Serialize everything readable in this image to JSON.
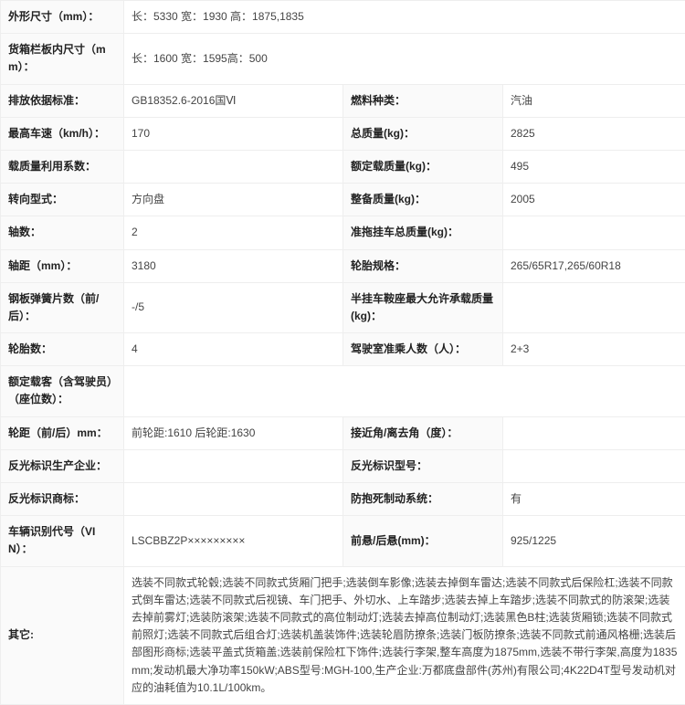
{
  "rows": [
    {
      "type": "span2",
      "label": "外形尺寸（mm）：",
      "value": "长：5330 宽：1930 高：1875,1835"
    },
    {
      "type": "span2",
      "label": "货箱栏板内尺寸（mm）：",
      "value": "长：1600 宽：1595高：500"
    },
    {
      "type": "quad",
      "l1": "排放依据标准：",
      "v1": "GB18352.6-2016国Ⅵ",
      "l2": "燃料种类：",
      "v2": "汽油"
    },
    {
      "type": "quad",
      "l1": "最高车速（km/h）：",
      "v1": "170",
      "l2": "总质量(kg)：",
      "v2": "2825"
    },
    {
      "type": "quad",
      "l1": "载质量利用系数：",
      "v1": "",
      "l2": "额定载质量(kg)：",
      "v2": "495"
    },
    {
      "type": "quad",
      "l1": "转向型式：",
      "v1": "方向盘",
      "l2": "整备质量(kg)：",
      "v2": "2005"
    },
    {
      "type": "quad",
      "l1": "轴数：",
      "v1": "2",
      "l2": "准拖挂车总质量(kg)：",
      "v2": ""
    },
    {
      "type": "quad",
      "l1": "轴距（mm）：",
      "v1": "3180",
      "l2": "轮胎规格：",
      "v2": "265/65R17,265/60R18"
    },
    {
      "type": "quad",
      "l1": "钢板弹簧片数（前/后）：",
      "v1": "-/5",
      "l2": "半挂车鞍座最大允许承载质量(kg)：",
      "v2": ""
    },
    {
      "type": "quad",
      "l1": "轮胎数：",
      "v1": "4",
      "l2": "驾驶室准乘人数（人）：",
      "v2": "2+3"
    },
    {
      "type": "span2",
      "label": "额定载客（含驾驶员）（座位数）：",
      "value": ""
    },
    {
      "type": "quad",
      "l1": "轮距（前/后）mm：",
      "v1": "前轮距:1610 后轮距:1630",
      "l2": "接近角/离去角（度）：",
      "v2": ""
    },
    {
      "type": "quad",
      "l1": "反光标识生产企业：",
      "v1": "",
      "l2": "反光标识型号：",
      "v2": ""
    },
    {
      "type": "quad",
      "l1": "反光标识商标：",
      "v1": "",
      "l2": "防抱死制动系统：",
      "v2": "有"
    },
    {
      "type": "quad",
      "l1": "车辆识别代号（VIN）：",
      "v1": "LSCBBZ2P×××××××××",
      "l2": "前悬/后悬(mm)：",
      "v2": "925/1225"
    },
    {
      "type": "span2",
      "label": "其它:",
      "value": "选装不同款式轮毂;选装不同款式货厢门把手;选装倒车影像;选装去掉倒车雷达;选装不同款式后保险杠;选装不同款式倒车雷达;选装不同款式后视镜、车门把手、外切水、上车踏步;选装去掉上车踏步;选装不同款式的防滚架;选装去掉前雾灯;选装防滚架;选装不同款式的高位制动灯;选装去掉高位制动灯;选装黑色B柱;选装货厢锁;选装不同款式前照灯;选装不同款式后组合灯;选装机盖装饰件;选装轮眉防撩条;选装门板防撩条;选装不同款式前通风格栅;选装后部图形商标;选装平盖式货箱盖;选装前保险杠下饰件;选装行李架,整车高度为1875mm,选装不带行李架,高度为1835mm;发动机最大净功率150kW;ABS型号:MGH-100,生产企业:万都底盘部件(苏州)有限公司;4K22D4T型号发动机对应的油耗值为10.1L/100km。"
    }
  ]
}
